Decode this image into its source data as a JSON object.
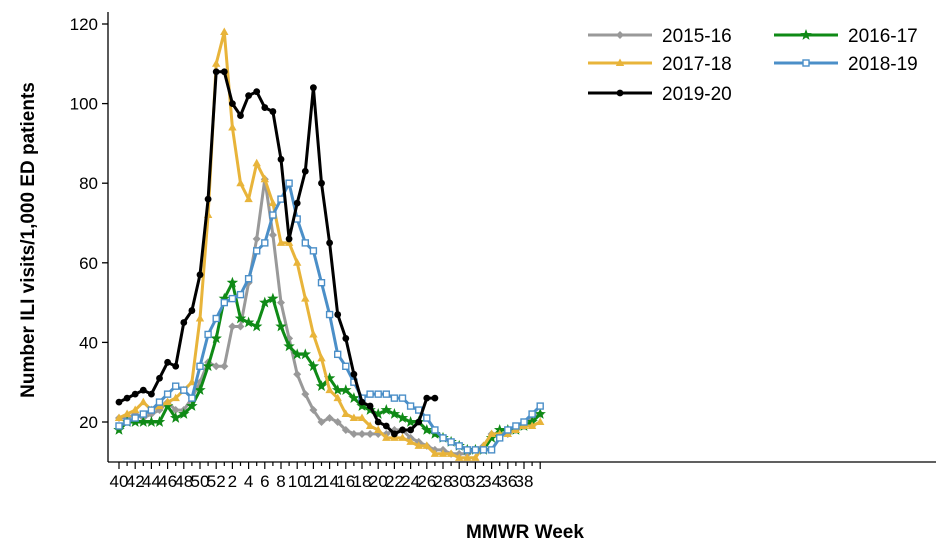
{
  "chart_data": {
    "type": "line",
    "xlabel": "MMWR Week",
    "ylabel": "Number ILI visits/1,000 ED patients",
    "ylim": [
      8,
      122
    ],
    "yticks": [
      20,
      40,
      60,
      80,
      100,
      120
    ],
    "x_tick_labels": [
      "40",
      "42",
      "44",
      "46",
      "48",
      "50",
      "52",
      "2",
      "4",
      "6",
      "8",
      "10",
      "12",
      "14",
      "16",
      "18",
      "20",
      "22",
      "24",
      "26",
      "28",
      "30",
      "32",
      "34",
      "36",
      "38"
    ],
    "legend_position": "top-right",
    "series": [
      {
        "name": "2015-16",
        "color": "#999999",
        "marker": "diamond",
        "values": [
          21,
          21,
          22,
          21,
          22,
          23,
          25,
          23,
          23,
          26,
          30,
          35,
          34,
          34,
          44,
          44,
          55,
          66,
          81,
          67,
          50,
          41,
          32,
          27,
          23,
          20,
          21,
          20,
          18,
          17,
          17,
          17,
          17,
          17,
          18,
          18,
          16,
          15,
          14,
          13,
          13,
          12,
          12,
          12,
          13,
          14,
          17,
          17,
          17,
          18,
          19,
          21,
          22
        ]
      },
      {
        "name": "2016-17",
        "color": "#0f8a16",
        "marker": "star",
        "values": [
          18,
          20,
          20,
          20,
          20,
          20,
          24,
          21,
          22,
          24,
          28,
          34,
          41,
          51,
          55,
          46,
          45,
          44,
          50,
          51,
          44,
          39,
          37,
          37,
          34,
          29,
          31,
          28,
          28,
          26,
          24,
          23,
          22,
          23,
          22,
          21,
          20,
          20,
          18,
          17,
          16,
          15,
          14,
          13,
          13,
          13,
          16,
          18,
          18,
          18,
          19,
          20,
          22
        ]
      },
      {
        "name": "2017-18",
        "color": "#e8b43a",
        "marker": "triangle",
        "values": [
          21,
          22,
          23,
          25,
          23,
          24,
          25,
          26,
          28,
          30,
          46,
          72,
          110,
          118,
          94,
          80,
          76,
          85,
          81,
          75,
          65,
          65,
          60,
          51,
          42,
          36,
          28,
          26,
          22,
          21,
          21,
          19,
          18,
          16,
          16,
          16,
          15,
          14,
          14,
          12,
          12,
          12,
          11,
          11,
          11,
          14,
          17,
          17,
          17,
          18,
          19,
          19,
          20
        ]
      },
      {
        "name": "2018-19",
        "color": "#4b8fc8",
        "marker": "square",
        "values": [
          19,
          20,
          21,
          22,
          23,
          25,
          27,
          29,
          28,
          26,
          34,
          42,
          46,
          50,
          51,
          52,
          56,
          63,
          65,
          72,
          76,
          80,
          71,
          65,
          63,
          55,
          47,
          37,
          34,
          30,
          26,
          27,
          27,
          27,
          26,
          26,
          24,
          23,
          21,
          18,
          16,
          15,
          14,
          13,
          13,
          13,
          13,
          16,
          18,
          19,
          20,
          22,
          24
        ]
      },
      {
        "name": "2019-20",
        "color": "#000000",
        "marker": "circle",
        "values": [
          25,
          26,
          27,
          28,
          27,
          31,
          35,
          34,
          45,
          48,
          57,
          76,
          108,
          108,
          100,
          97,
          102,
          103,
          99,
          98,
          86,
          66,
          75,
          83,
          104,
          80,
          65,
          47,
          41,
          32,
          25,
          24,
          20,
          19,
          17,
          18,
          18,
          20,
          26,
          26
        ]
      }
    ]
  }
}
